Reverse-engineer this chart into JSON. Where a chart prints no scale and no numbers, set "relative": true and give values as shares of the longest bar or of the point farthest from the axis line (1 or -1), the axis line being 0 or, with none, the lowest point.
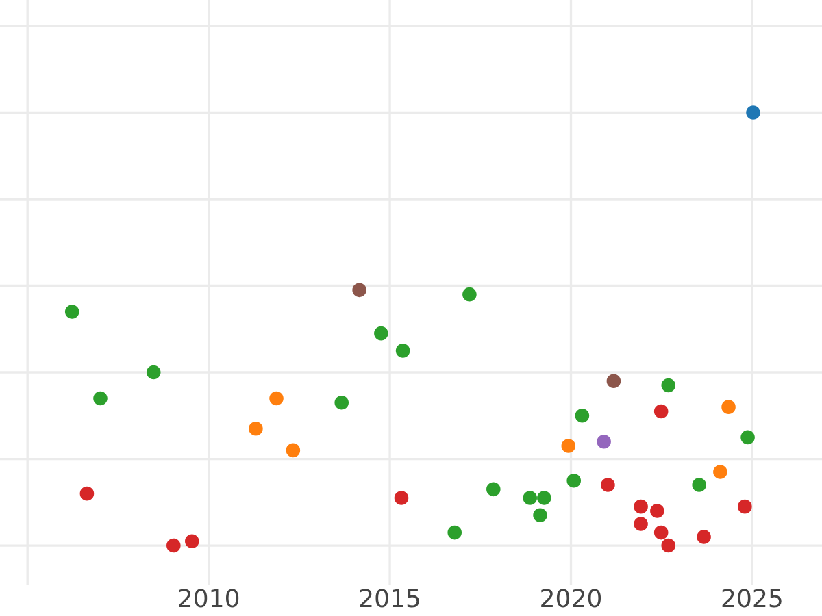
{
  "chart_data": {
    "type": "scatter",
    "relative": true,
    "grid": true,
    "marker": "circle",
    "xlim": [
      2004.24,
      2026.93
    ],
    "xticks": [
      {
        "value": 2005,
        "label": null
      },
      2010,
      2015,
      2020,
      2025
    ],
    "series": [
      {
        "x": [
          2006.23,
          2007.01,
          2008.48,
          2006.64,
          2009.03,
          2009.54,
          2011.3,
          2011.87,
          2012.33,
          2013.67,
          2014.16,
          2014.76,
          2015.36,
          2015.32,
          2017.2,
          2016.79,
          2017.86,
          2018.87,
          2019.26,
          2019.15,
          2019.93,
          2020.08,
          2020.31,
          2020.91,
          2021.02,
          2021.18,
          2022.49,
          2022.69,
          2021.93,
          2022.38,
          2021.93,
          2022.49,
          2022.69,
          2023.67,
          2023.54,
          2024.12,
          2024.35,
          2024.88,
          2024.8,
          2025.03
        ],
        "values": [
          0.54,
          0.34,
          0.4,
          0.12,
          0.0,
          0.01,
          0.27,
          0.34,
          0.22,
          0.33,
          0.59,
          0.49,
          0.45,
          0.11,
          0.58,
          0.03,
          0.13,
          0.11,
          0.11,
          0.07,
          0.23,
          0.15,
          0.3,
          0.24,
          0.14,
          0.38,
          0.31,
          0.37,
          0.09,
          0.08,
          0.05,
          0.03,
          0.0,
          0.02,
          0.14,
          0.17,
          0.32,
          0.25,
          0.09,
          1.0
        ],
        "colors": [
          "#2ca02c",
          "#2ca02c",
          "#2ca02c",
          "#d62728",
          "#d62728",
          "#d62728",
          "#ff7f0e",
          "#ff7f0e",
          "#ff7f0e",
          "#2ca02c",
          "#8c564b",
          "#2ca02c",
          "#2ca02c",
          "#d62728",
          "#2ca02c",
          "#2ca02c",
          "#2ca02c",
          "#2ca02c",
          "#2ca02c",
          "#2ca02c",
          "#ff7f0e",
          "#2ca02c",
          "#2ca02c",
          "#9467bd",
          "#d62728",
          "#8c564b",
          "#d62728",
          "#2ca02c",
          "#d62728",
          "#d62728",
          "#d62728",
          "#d62728",
          "#d62728",
          "#d62728",
          "#2ca02c",
          "#ff7f0e",
          "#ff7f0e",
          "#2ca02c",
          "#d62728",
          "#1f77b4"
        ]
      }
    ]
  }
}
